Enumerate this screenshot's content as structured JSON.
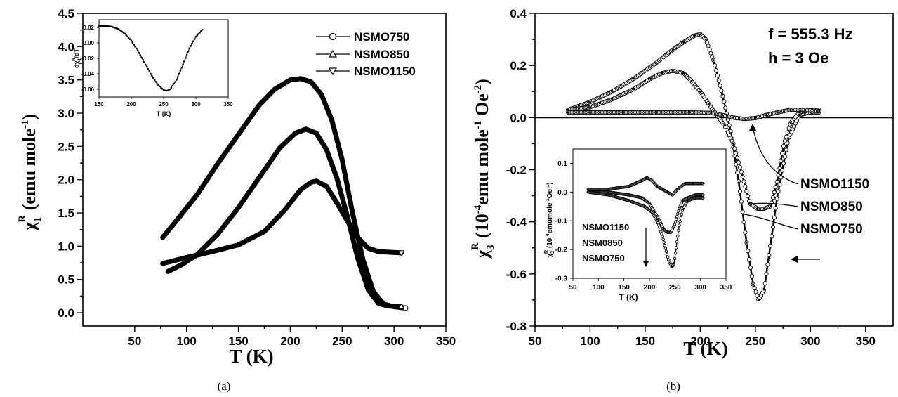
{
  "chart_data": [
    {
      "panel": "(a)",
      "type": "scatter",
      "xlabel": "T (K)",
      "ylabel": "χ1R (emu mole-1)",
      "ylabel_parts": {
        "sym": "χ",
        "sub": "1",
        "sup": "R",
        "main": " (emu mole",
        "unitexp": "-1",
        "close": ")"
      },
      "xlim": [
        0,
        350
      ],
      "ylim": [
        -0.2,
        4.5
      ],
      "xticks": [
        "50",
        "100",
        "150",
        "200",
        "250",
        "300",
        "350"
      ],
      "yticks": [
        "0.0",
        "0.5",
        "1.0",
        "1.5",
        "2.0",
        "2.5",
        "3.0",
        "3.5",
        "4.0",
        "4.5"
      ],
      "legend_position": "top-right",
      "series": [
        {
          "name": "NSMO750",
          "marker": "circle",
          "x": [
            77,
            90,
            110,
            130,
            150,
            170,
            185,
            200,
            210,
            220,
            230,
            240,
            250,
            260,
            270,
            280,
            290,
            300,
            311
          ],
          "y": [
            1.13,
            1.38,
            1.77,
            2.24,
            2.68,
            3.12,
            3.36,
            3.5,
            3.52,
            3.47,
            3.28,
            2.9,
            2.3,
            1.5,
            0.8,
            0.32,
            0.13,
            0.09,
            0.07
          ]
        },
        {
          "name": "NSMO850",
          "marker": "triangle-up",
          "x": [
            82,
            95,
            110,
            130,
            150,
            170,
            190,
            205,
            215,
            225,
            235,
            245,
            255,
            265,
            275,
            285,
            295,
            307
          ],
          "y": [
            0.62,
            0.72,
            0.87,
            1.18,
            1.58,
            2.03,
            2.48,
            2.7,
            2.76,
            2.7,
            2.45,
            2.02,
            1.45,
            0.82,
            0.35,
            0.14,
            0.1,
            0.09
          ]
        },
        {
          "name": "NSMO1150",
          "marker": "triangle-down",
          "x": [
            77,
            100,
            125,
            150,
            175,
            195,
            210,
            220,
            225,
            235,
            245,
            255,
            265,
            275,
            285,
            295,
            307
          ],
          "y": [
            0.74,
            0.83,
            0.92,
            1.02,
            1.22,
            1.55,
            1.85,
            1.96,
            1.98,
            1.9,
            1.65,
            1.38,
            1.13,
            0.97,
            0.92,
            0.91,
            0.9
          ]
        }
      ],
      "inset": {
        "xlabel": "T (K)",
        "ylabel": "dχ1R/dT",
        "ylabel_parts": {
          "pre": "dχ",
          "sub": "1",
          "sup": "R",
          "post": "/dT"
        },
        "xlim": [
          150,
          350
        ],
        "ylim": [
          -0.07,
          0.03
        ],
        "xticks": [
          "150",
          "200",
          "250",
          "300",
          "350"
        ],
        "yticks": [
          "-0.06",
          "-0.04",
          "-0.02",
          "0.00",
          "0.02"
        ],
        "x": [
          150,
          160,
          170,
          180,
          190,
          200,
          210,
          220,
          230,
          240,
          250,
          255,
          260,
          270,
          280,
          290,
          300,
          310
        ],
        "y": [
          0.022,
          0.022,
          0.021,
          0.018,
          0.012,
          0.003,
          -0.01,
          -0.025,
          -0.04,
          -0.053,
          -0.061,
          -0.062,
          -0.06,
          -0.048,
          -0.028,
          -0.007,
          0.008,
          0.017
        ]
      },
      "grid": false
    },
    {
      "panel": "(b)",
      "type": "scatter",
      "xlabel": "T (K)",
      "ylabel": "χ3R (10-4emu mole-1 Oe-2)",
      "ylabel_parts": {
        "sym": "χ",
        "sub": "3",
        "sup": "R",
        "open": " (10",
        "e1": "-4",
        "m1": "emu mole",
        "e2": "-1",
        "m2": " Oe",
        "e3": "-2",
        "close": ")"
      },
      "xlim": [
        50,
        375
      ],
      "ylim": [
        -0.8,
        0.4
      ],
      "xticks": [
        "50",
        "100",
        "150",
        "200",
        "250",
        "300",
        "350"
      ],
      "yticks": [
        "-0.8",
        "-0.6",
        "-0.4",
        "-0.2",
        "0.0",
        "0.2",
        "0.4"
      ],
      "annotations": [
        "f = 555.3 Hz",
        "h = 3 Oe"
      ],
      "curve_labels": [
        "NSMO1150",
        "NSMO850",
        "NSMO750"
      ],
      "series": [
        {
          "name": "NSMO750",
          "x": [
            80,
            100,
            120,
            140,
            160,
            175,
            185,
            195,
            200,
            205,
            212,
            220,
            228,
            235,
            242,
            248,
            253,
            258,
            264,
            270,
            280,
            290,
            300,
            308
          ],
          "y": [
            0.03,
            0.06,
            0.1,
            0.15,
            0.21,
            0.26,
            0.29,
            0.315,
            0.32,
            0.3,
            0.22,
            0.09,
            -0.06,
            -0.25,
            -0.48,
            -0.64,
            -0.7,
            -0.66,
            -0.48,
            -0.3,
            -0.08,
            0.01,
            0.02,
            0.02
          ]
        },
        {
          "name": "NSMO850",
          "x": [
            80,
            100,
            120,
            140,
            155,
            165,
            175,
            185,
            192,
            200,
            208,
            215,
            222,
            230,
            238,
            245,
            252,
            258,
            264,
            270,
            276,
            282,
            290,
            300,
            308
          ],
          "y": [
            0.03,
            0.04,
            0.07,
            0.11,
            0.15,
            0.17,
            0.18,
            0.17,
            0.14,
            0.1,
            0.05,
            0.01,
            -0.03,
            -0.1,
            -0.22,
            -0.33,
            -0.35,
            -0.35,
            -0.34,
            -0.24,
            -0.1,
            -0.02,
            0.02,
            0.03,
            0.03
          ]
        },
        {
          "name": "NSMO1150",
          "x": [
            80,
            100,
            130,
            160,
            190,
            210,
            220,
            230,
            240,
            250,
            260,
            270,
            282,
            295,
            308
          ],
          "y": [
            0.02,
            0.02,
            0.02,
            0.02,
            0.02,
            0.018,
            0.01,
            0.0,
            -0.005,
            -0.002,
            0.01,
            0.02,
            0.03,
            0.03,
            0.025
          ]
        }
      ],
      "inset": {
        "xlabel": "T (K)",
        "ylabel": "χ2R (10-4emumole-1Oe-1)",
        "ylabel_parts": {
          "sym": "χ",
          "sub": "2",
          "sup": "R",
          "open": " (10",
          "e1": "-4",
          "m1": "emumole",
          "e2": "-1",
          "m2": "Oe",
          "e3": "-1",
          "close": ")"
        },
        "xlim": [
          50,
          350
        ],
        "ylim": [
          -0.3,
          0.15
        ],
        "xticks": [
          "50",
          "100",
          "150",
          "200",
          "250",
          "300",
          "350"
        ],
        "yticks": [
          "-0.3",
          "-0.2",
          "-0.1",
          "0.0",
          "0.1"
        ],
        "labels": [
          "NSMO1150",
          "NSM0850",
          "NSMO750"
        ],
        "series": [
          {
            "name": "NSMO1150",
            "x": [
              80,
              120,
              160,
              185,
              195,
              205,
              215,
              225,
              235,
              245,
              255,
              270,
              285,
              305
            ],
            "y": [
              0.01,
              0.01,
              0.02,
              0.04,
              0.05,
              0.04,
              0.02,
              0.01,
              0.0,
              -0.01,
              0.01,
              0.03,
              0.03,
              0.03
            ]
          },
          {
            "name": "NSM0850",
            "x": [
              80,
              120,
              160,
              185,
              200,
              210,
              220,
              228,
              235,
              242,
              250,
              258,
              265,
              275,
              290,
              305
            ],
            "y": [
              0.0,
              0.0,
              -0.01,
              -0.02,
              -0.04,
              -0.07,
              -0.1,
              -0.13,
              -0.14,
              -0.14,
              -0.11,
              -0.06,
              -0.03,
              -0.02,
              -0.01,
              -0.01
            ]
          },
          {
            "name": "NSMO750",
            "x": [
              80,
              120,
              160,
              190,
              205,
              215,
              225,
              232,
              238,
              244,
              248,
              252,
              258,
              265,
              275,
              290,
              305
            ],
            "y": [
              0.0,
              -0.01,
              -0.03,
              -0.05,
              -0.07,
              -0.1,
              -0.15,
              -0.2,
              -0.24,
              -0.26,
              -0.25,
              -0.2,
              -0.12,
              -0.06,
              -0.03,
              -0.02,
              -0.02
            ]
          }
        ]
      },
      "grid": false
    }
  ]
}
